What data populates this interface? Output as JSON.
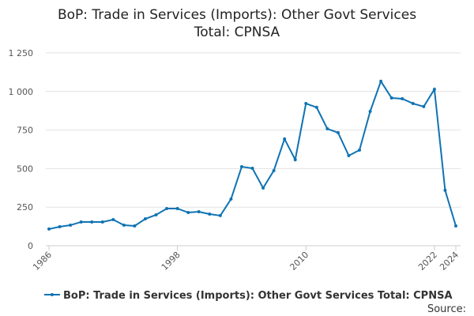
{
  "chart_data": {
    "type": "line",
    "title": "BoP: Trade in Services (Imports): Other Govt Services Total: CPNSA",
    "x": [
      1986,
      1987,
      1988,
      1989,
      1990,
      1991,
      1992,
      1993,
      1994,
      1995,
      1996,
      1997,
      1998,
      1999,
      2000,
      2001,
      2002,
      2003,
      2004,
      2005,
      2006,
      2007,
      2008,
      2009,
      2010,
      2011,
      2012,
      2013,
      2014,
      2015,
      2016,
      2017,
      2018,
      2019,
      2020,
      2021,
      2022,
      2023,
      2024
    ],
    "series": [
      {
        "name": "BoP: Trade in Services (Imports): Other Govt Services Total: CPNSA",
        "color": "#0f73b3",
        "values": [
          108,
          123,
          133,
          154,
          154,
          154,
          169,
          133,
          128,
          174,
          200,
          241,
          241,
          215,
          220,
          205,
          195,
          302,
          512,
          502,
          374,
          487,
          692,
          558,
          922,
          897,
          758,
          733,
          584,
          620,
          871,
          1066,
          958,
          953,
          922,
          902,
          1014,
          359,
          128
        ]
      }
    ],
    "xlim": [
      1986,
      2024
    ],
    "xticks": [
      1986,
      1998,
      2010,
      2022,
      2024
    ],
    "ylim": [
      0,
      1250
    ],
    "yticks": [
      0,
      250,
      500,
      750,
      {
        "value": 1000,
        "label": "1 000"
      },
      {
        "value": 1250,
        "label": "1 250"
      }
    ],
    "grid": true,
    "source": "Source:"
  }
}
